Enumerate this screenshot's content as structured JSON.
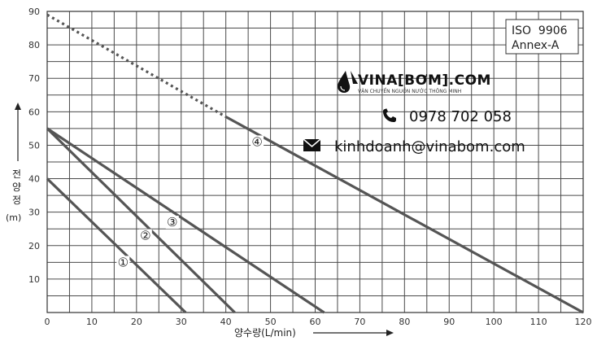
{
  "chart_data": {
    "type": "line",
    "xlabel": "양수량(L/min)",
    "ylabel_chars": [
      "전",
      "양",
      "정"
    ],
    "ylabel_unit": "(m)",
    "xlim": [
      0,
      120
    ],
    "ylim": [
      0,
      90
    ],
    "x_ticks": [
      0,
      10,
      20,
      30,
      40,
      50,
      60,
      70,
      80,
      90,
      100,
      110,
      120
    ],
    "y_ticks": [
      10,
      20,
      30,
      40,
      50,
      60,
      70,
      80,
      90
    ],
    "x_minor_step": 5,
    "y_minor_step": 5,
    "grid": true,
    "series": [
      {
        "name": "①",
        "x": [
          0,
          31
        ],
        "y": [
          40,
          0
        ],
        "label_at": [
          17,
          14
        ]
      },
      {
        "name": "②",
        "x": [
          0,
          42
        ],
        "y": [
          55,
          0
        ],
        "label_at": [
          22,
          22
        ]
      },
      {
        "name": "③",
        "x": [
          0,
          62
        ],
        "y": [
          55,
          0
        ],
        "label_at": [
          28,
          26
        ]
      },
      {
        "name": "④",
        "x": [
          0,
          40,
          120
        ],
        "y": [
          89,
          58.5,
          0
        ],
        "dotted_until_x": 40,
        "label_at": [
          47,
          50
        ]
      }
    ],
    "annotation_box": {
      "lines": [
        "ISO  9906",
        "Annex-A"
      ]
    }
  },
  "watermark": {
    "brand": "VINA[BƠM].COM",
    "tagline": "VẬN CHUYỂN NGUỒN NƯỚC THÔNG MINH",
    "phone": "0978 702 058",
    "email": "kinhdoanh@vinabom.com",
    "icons": [
      "water-drop-logo-icon",
      "phone-icon",
      "envelope-icon"
    ]
  }
}
